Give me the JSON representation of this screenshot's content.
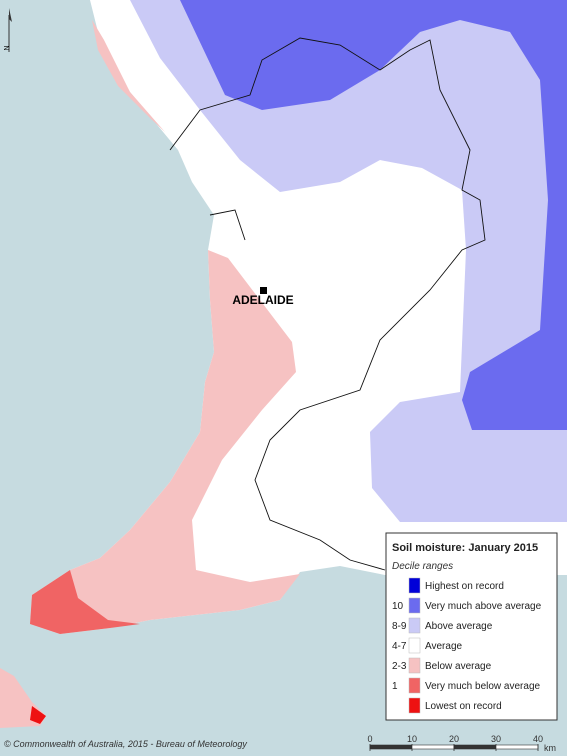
{
  "map": {
    "north_label": "N",
    "city": "ADELAIDE",
    "legend": {
      "title": "Soil moisture: January 2015",
      "subtitle": "Decile ranges",
      "entries": [
        {
          "label": "Highest on record",
          "color": "#0000d8"
        },
        {
          "code": "10",
          "label": "Very much above average",
          "color": "#6b6bef"
        },
        {
          "code": "8-9",
          "label": "Above average",
          "color": "#cacaf6"
        },
        {
          "code": "4-7",
          "label": "Average",
          "color": "#ffffff"
        },
        {
          "code": "2-3",
          "label": "Below average",
          "color": "#f6c2c2"
        },
        {
          "code": "1",
          "label": "Very much below average",
          "color": "#f06464"
        },
        {
          "label": "Lowest on record",
          "color": "#ee1111"
        }
      ]
    },
    "scale": {
      "ticks": [
        0,
        10,
        20,
        30,
        40
      ],
      "unit": "km"
    },
    "copyright": "© Commonwealth of Australia, 2015 - Bureau of Meteorology"
  }
}
